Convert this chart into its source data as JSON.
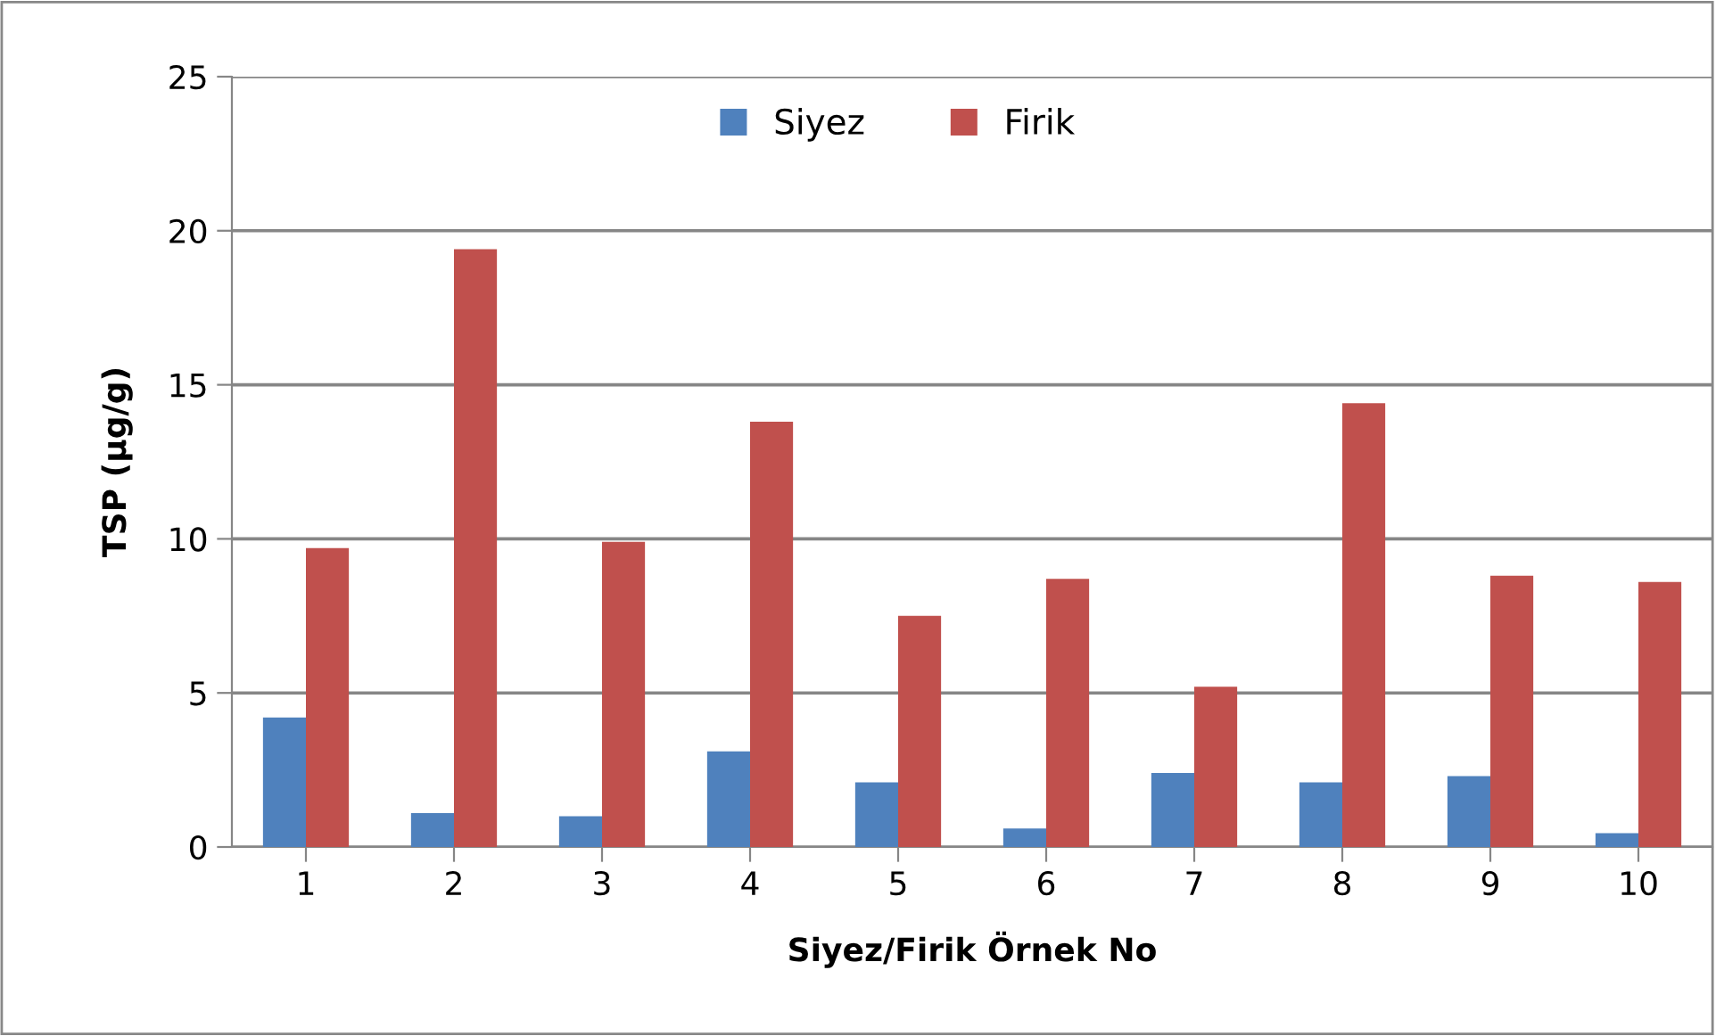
{
  "chart_data": {
    "type": "bar",
    "xlabel": "Siyez/Firik Örnek No",
    "ylabel": "TSP (µg/g)",
    "categories": [
      "1",
      "2",
      "3",
      "4",
      "5",
      "6",
      "7",
      "8",
      "9",
      "10"
    ],
    "series": [
      {
        "name": "Siyez",
        "color": "#4f81bd",
        "values": [
          4.2,
          1.1,
          1.0,
          3.1,
          2.1,
          0.6,
          2.4,
          2.1,
          2.3,
          0.45
        ]
      },
      {
        "name": "Firik",
        "color": "#c0504d",
        "values": [
          9.7,
          19.4,
          9.9,
          13.8,
          7.5,
          8.7,
          5.2,
          14.4,
          8.8,
          8.6
        ]
      }
    ],
    "ylim": [
      0,
      25
    ],
    "yticks": [
      0,
      5,
      10,
      15,
      20,
      25
    ],
    "grid": "y",
    "legend": "top"
  }
}
